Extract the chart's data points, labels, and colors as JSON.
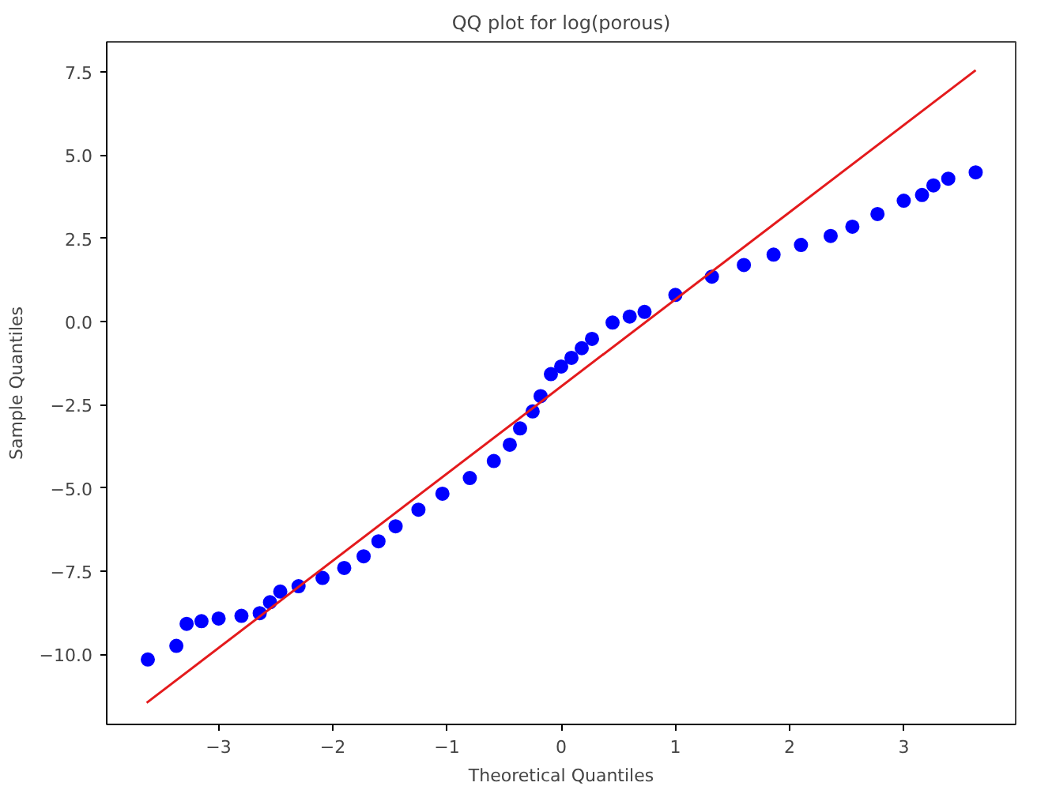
{
  "chart_data": {
    "type": "scatter",
    "title": "QQ plot for log(porous)",
    "xlabel": "Theoretical Quantiles",
    "ylabel": "Sample Quantiles",
    "xlim": [
      -3.98,
      3.98
    ],
    "ylim": [
      -12.1,
      8.4
    ],
    "xticks": [
      -3,
      -2,
      -1,
      0,
      1,
      2,
      3
    ],
    "yticks": [
      {
        "value": -10,
        "label": "−10.0"
      },
      {
        "value": -7.5,
        "label": "−7.5"
      },
      {
        "value": -5,
        "label": "−5.0"
      },
      {
        "value": -2.5,
        "label": "−2.5"
      },
      {
        "value": 0,
        "label": "0.0"
      },
      {
        "value": 2.5,
        "label": "2.5"
      },
      {
        "value": 5,
        "label": "5.0"
      },
      {
        "value": 7.5,
        "label": "7.5"
      }
    ],
    "grid": false,
    "marker": "circle",
    "series": [
      {
        "color": "#0000ff",
        "x": [
          -3.62,
          -3.37,
          -3.28,
          -3.15,
          -3.0,
          -2.8,
          -2.64,
          -2.55,
          -2.46,
          -2.3,
          -2.09,
          -1.9,
          -1.73,
          -1.6,
          -1.45,
          -1.25,
          -1.04,
          -0.8,
          -0.59,
          -0.45,
          -0.36,
          -0.25,
          -0.18,
          -0.09,
          0.0,
          0.09,
          0.18,
          0.27,
          0.45,
          0.6,
          0.73,
          1.0,
          1.32,
          1.6,
          1.86,
          2.1,
          2.36,
          2.55,
          2.77,
          3.0,
          3.16,
          3.26,
          3.39,
          3.63
        ],
        "values": [
          -10.15,
          -9.74,
          -9.08,
          -9.0,
          -8.92,
          -8.84,
          -8.76,
          -8.43,
          -8.11,
          -7.95,
          -7.7,
          -7.4,
          -7.05,
          -6.6,
          -6.15,
          -5.65,
          -5.17,
          -4.7,
          -4.19,
          -3.7,
          -3.21,
          -2.7,
          -2.24,
          -1.58,
          -1.35,
          -1.09,
          -0.8,
          -0.52,
          -0.03,
          0.15,
          0.29,
          0.8,
          1.35,
          1.7,
          2.01,
          2.3,
          2.57,
          2.85,
          3.23,
          3.63,
          3.8,
          4.09,
          4.29,
          4.48
        ]
      },
      {
        "type": "line",
        "color": "#e41a1c",
        "marker": "none",
        "x": [
          -3.63,
          3.63
        ],
        "values": [
          -11.45,
          7.55
        ]
      }
    ]
  }
}
